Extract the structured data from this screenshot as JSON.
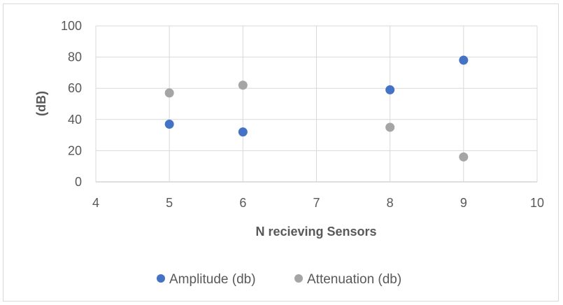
{
  "chart_data": {
    "type": "scatter",
    "title": "",
    "xlabel": "N recieving Sensors",
    "ylabel": "(dB)",
    "xlim": [
      4,
      10
    ],
    "ylim": [
      0,
      100
    ],
    "xticks": [
      "4",
      "5",
      "6",
      "7",
      "8",
      "9",
      "10"
    ],
    "yticks": [
      "0",
      "20",
      "40",
      "60",
      "80",
      "100"
    ],
    "grid": true,
    "legend_position": "bottom",
    "series": [
      {
        "name": "Amplitude (db)",
        "color": "#4472c4",
        "points": [
          {
            "x": 5,
            "y": 37
          },
          {
            "x": 6,
            "y": 32
          },
          {
            "x": 8,
            "y": 59
          },
          {
            "x": 9,
            "y": 78
          }
        ]
      },
      {
        "name": "Attenuation (db)",
        "color": "#a5a5a5",
        "points": [
          {
            "x": 5,
            "y": 57
          },
          {
            "x": 6,
            "y": 62
          },
          {
            "x": 8,
            "y": 35
          },
          {
            "x": 9,
            "y": 16
          }
        ]
      }
    ]
  }
}
